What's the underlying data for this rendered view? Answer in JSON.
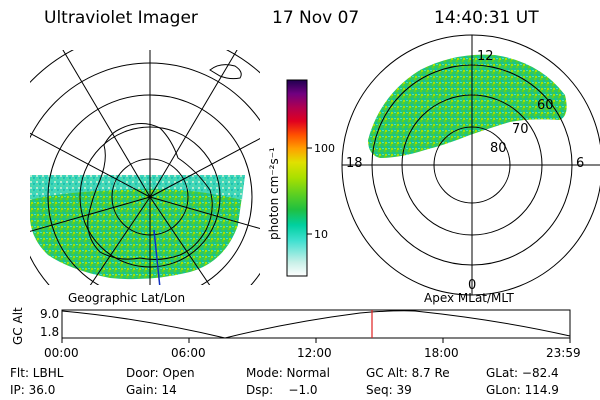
{
  "header": {
    "instrument": "Ultraviolet Imager",
    "date": "17 Nov 07",
    "time": "14:40:31 UT"
  },
  "left_map": {
    "title": "Geographic Lat/Lon"
  },
  "right_map": {
    "title": "Apex MLat/MLT",
    "mlt_labels": [
      "12",
      "18",
      "6",
      "0"
    ],
    "mlat_labels": [
      "60",
      "70",
      "80"
    ]
  },
  "colorbar": {
    "unit_label": "photon cm⁻²s⁻¹",
    "ticks": [
      "100",
      "10"
    ],
    "colors": [
      "#ffffff",
      "#c8f0e8",
      "#40e0d0",
      "#00d0a0",
      "#20c040",
      "#60d020",
      "#a8e000",
      "#e0e000",
      "#ffa000",
      "#ff5000",
      "#e00020",
      "#b00050",
      "#700080",
      "#200050",
      "#000000"
    ]
  },
  "timeline": {
    "ylabel": "GC Alt",
    "yticks": [
      "9.0",
      "1.8"
    ],
    "xticks": [
      "00:00",
      "06:00",
      "12:00",
      "18:00",
      "23:59"
    ],
    "current_time": "14:40",
    "current_marker_color": "#e02020"
  },
  "info": {
    "row1": {
      "filter": "Flt: LBHL",
      "door": "Door: Open",
      "mode": "Mode: Normal",
      "gc_alt": "GC Alt: 8.7 Re",
      "glat": "GLat: −82.4"
    },
    "row2": {
      "ip": "IP: 36.0",
      "gain": "Gain: 14",
      "dsp": "Dsp:    −1.0",
      "seq": "Seq: 39",
      "glon": "GLon: 114.9"
    }
  }
}
